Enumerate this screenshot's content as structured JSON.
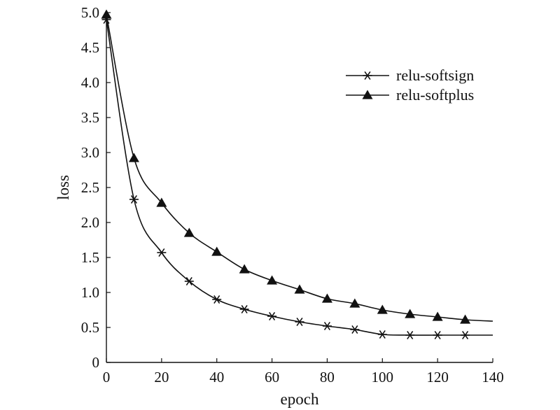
{
  "chart_data": {
    "type": "line",
    "xlabel": "epoch",
    "ylabel": "loss",
    "xlim": [
      0,
      140
    ],
    "ylim": [
      0,
      5.0
    ],
    "xticks": [
      0,
      20,
      40,
      60,
      80,
      100,
      120,
      140
    ],
    "xtick_labels": [
      "0",
      "20",
      "40",
      "60",
      "80",
      "100",
      "120",
      "140"
    ],
    "yticks": [
      0,
      0.5,
      1.0,
      1.5,
      2.0,
      2.5,
      3.0,
      3.5,
      4.0,
      4.5,
      5.0
    ],
    "ytick_labels": [
      "0",
      "0.5",
      "1.0",
      "1.5",
      "2.0",
      "2.5",
      "3.0",
      "3.5",
      "4.0",
      "4.5",
      "5.0"
    ],
    "grid": false,
    "legend_position": "top-right",
    "series": [
      {
        "name": "relu-softsign",
        "marker": "asterisk",
        "color": "#111111",
        "x": [
          0,
          10,
          20,
          30,
          40,
          50,
          60,
          70,
          80,
          90,
          100,
          110,
          120,
          130,
          140
        ],
        "y": [
          4.9,
          2.33,
          1.57,
          1.16,
          0.9,
          0.76,
          0.66,
          0.58,
          0.52,
          0.47,
          0.4,
          0.39,
          0.39,
          0.39,
          0.39
        ],
        "marker_x": [
          0,
          10,
          20,
          30,
          40,
          50,
          60,
          70,
          80,
          90,
          100,
          110,
          120,
          130
        ]
      },
      {
        "name": "relu-softplus",
        "marker": "triangle",
        "color": "#111111",
        "x": [
          0,
          10,
          20,
          30,
          40,
          50,
          60,
          70,
          80,
          90,
          100,
          110,
          120,
          130,
          140
        ],
        "y": [
          4.97,
          2.92,
          2.28,
          1.85,
          1.58,
          1.33,
          1.17,
          1.04,
          0.91,
          0.84,
          0.75,
          0.69,
          0.65,
          0.61,
          0.59
        ],
        "marker_x": [
          0,
          10,
          20,
          30,
          40,
          50,
          60,
          70,
          80,
          90,
          100,
          110,
          120,
          130
        ]
      }
    ]
  }
}
